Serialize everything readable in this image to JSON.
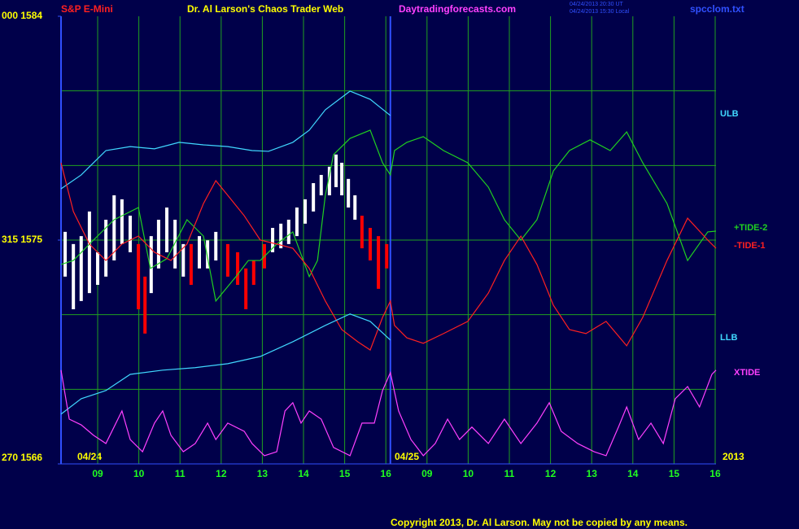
{
  "chart_data": {
    "type": "line",
    "instrument": "S&P E-Mini",
    "title": "Dr. Al Larson's Chaos Trader Web",
    "website": "Daytradingforecasts.com",
    "timestamps": [
      "04/24/2013 20:30 UT",
      "04/24/2013 15:30 Local"
    ],
    "filename": "spcclom.txt",
    "dates": [
      "04/24",
      "04/25"
    ],
    "year": "2013",
    "copyright": "Copyright 2013, Dr. Al Larson. May not be copied by any means.",
    "xlim": [
      -0.89,
      15.02
    ],
    "xticks": [
      {
        "value": 0,
        "label": "09"
      },
      {
        "value": 1,
        "label": "10"
      },
      {
        "value": 2,
        "label": "11"
      },
      {
        "value": 3,
        "label": "12"
      },
      {
        "value": 4,
        "label": "13"
      },
      {
        "value": 5,
        "label": "14"
      },
      {
        "value": 6,
        "label": "15"
      },
      {
        "value": 7,
        "label": "16"
      },
      {
        "value": 8,
        "label": "09"
      },
      {
        "value": 9,
        "label": "10"
      },
      {
        "value": 10,
        "label": "11"
      },
      {
        "value": 11,
        "label": "12"
      },
      {
        "value": 12,
        "label": "13"
      },
      {
        "value": 13,
        "label": "14"
      },
      {
        "value": 14,
        "label": "15"
      },
      {
        "value": 15,
        "label": "16"
      }
    ],
    "day_divider": 7.11,
    "ylim": [
      1566,
      1584
    ],
    "yticks": [
      {
        "value": 1584,
        "label": "000 1584"
      },
      {
        "value": 1575,
        "label": "315 1575"
      },
      {
        "value": 1566,
        "label": "270 1566"
      }
    ],
    "ygrid": [
      1581,
      1578,
      1575,
      1572,
      1569
    ],
    "grid": true,
    "price_bars": {
      "x": [
        -0.79,
        -0.59,
        -0.4,
        -0.2,
        0,
        0.2,
        0.4,
        0.59,
        0.79,
        0.99,
        1.15,
        1.3,
        1.48,
        1.68,
        1.88,
        2.08,
        2.27,
        2.47,
        2.67,
        2.87,
        3.16,
        3.4,
        3.6,
        3.79,
        4.05,
        4.25,
        4.45,
        4.64,
        4.84,
        5.04,
        5.24,
        5.43,
        5.63,
        5.79,
        5.93,
        6.09,
        6.25,
        6.42,
        6.62,
        6.82,
        7.02
      ],
      "high": [
        1575.33,
        1574.84,
        1575.16,
        1576.15,
        1574.51,
        1575.82,
        1576.8,
        1576.64,
        1575.98,
        1574.84,
        1573.53,
        1575.16,
        1575.82,
        1576.31,
        1575.82,
        1574.84,
        1574.84,
        1575.16,
        1574.99,
        1575.33,
        1574.84,
        1574.51,
        1573.86,
        1574.18,
        1574.84,
        1575.49,
        1575.66,
        1575.82,
        1576.31,
        1576.64,
        1577.29,
        1577.62,
        1577.95,
        1578.44,
        1578.11,
        1577.46,
        1576.8,
        1575.98,
        1575.49,
        1575.16,
        1574.84
      ],
      "low": [
        1573.53,
        1572.22,
        1572.55,
        1572.87,
        1573.2,
        1573.53,
        1574.18,
        1574.84,
        1574.51,
        1572.22,
        1571.24,
        1572.87,
        1573.86,
        1574.51,
        1573.86,
        1573.53,
        1573.2,
        1573.86,
        1573.86,
        1574.18,
        1573.53,
        1573.2,
        1572.22,
        1573.2,
        1573.86,
        1574.51,
        1574.67,
        1574.84,
        1575.16,
        1575.66,
        1576.15,
        1576.8,
        1576.8,
        1577.13,
        1576.8,
        1576.31,
        1575.82,
        1574.67,
        1574.18,
        1573.04,
        1573.86
      ],
      "colors": [
        "#ffffff",
        "#ffffff",
        "#ffffff",
        "#ffffff",
        "#ffffff",
        "#ffffff",
        "#ffffff",
        "#ffffff",
        "#ffffff",
        "#ff0000",
        "#ff0000",
        "#ffffff",
        "#ffffff",
        "#ffffff",
        "#ffffff",
        "#ffffff",
        "#ff0000",
        "#ffffff",
        "#ffffff",
        "#ffffff",
        "#ff0000",
        "#ff0000",
        "#ff0000",
        "#ff0000",
        "#ff0000",
        "#ffffff",
        "#ffffff",
        "#ffffff",
        "#ffffff",
        "#ffffff",
        "#ffffff",
        "#ffffff",
        "#ffffff",
        "#ffffff",
        "#ffffff",
        "#ffffff",
        "#ffffff",
        "#ff0000",
        "#ff0000",
        "#ff0000",
        "#ff0000"
      ]
    },
    "series": [
      {
        "name": "ULB",
        "color": "#40d8ff",
        "x": [
          -0.89,
          -0.4,
          0.2,
          0.79,
          1.38,
          1.98,
          2.57,
          3.16,
          3.75,
          4.15,
          4.74,
          5.14,
          5.53,
          6.13,
          6.62,
          7.11
        ],
        "values": [
          1577.06,
          1577.62,
          1578.6,
          1578.76,
          1578.67,
          1578.93,
          1578.83,
          1578.76,
          1578.6,
          1578.57,
          1578.93,
          1579.42,
          1580.24,
          1580.99,
          1580.66,
          1580.01
        ]
      },
      {
        "name": "+TIDE-2",
        "color": "#20d020",
        "x": [
          -0.89,
          -0.59,
          -0.2,
          0.4,
          0.99,
          1.28,
          1.68,
          2.17,
          2.57,
          2.87,
          3.36,
          3.66,
          3.95,
          4.35,
          4.74,
          5.14,
          5.34,
          5.53,
          5.73,
          6.13,
          6.62,
          6.92,
          7.11,
          7.21,
          7.51,
          7.91,
          8.4,
          8.99,
          9.49,
          9.88,
          10.28,
          10.67,
          11.07,
          11.46,
          11.96,
          12.45,
          12.85,
          13.24,
          13.83,
          14.33,
          14.82,
          15.02
        ],
        "values": [
          1574.02,
          1574.18,
          1574.84,
          1575.82,
          1576.31,
          1573.86,
          1574.25,
          1575.82,
          1575.16,
          1572.55,
          1573.53,
          1574.18,
          1574.18,
          1574.84,
          1575.33,
          1573.53,
          1574.18,
          1576.8,
          1578.44,
          1579.09,
          1579.42,
          1578.11,
          1577.62,
          1578.6,
          1578.93,
          1579.16,
          1578.6,
          1578.11,
          1577.13,
          1575.82,
          1575.0,
          1575.82,
          1577.78,
          1578.6,
          1579.03,
          1578.6,
          1579.35,
          1578.11,
          1576.47,
          1574.18,
          1575.33,
          1575.36
        ]
      },
      {
        "name": "-TIDE-1",
        "color": "#ff2020",
        "x": [
          -0.89,
          -0.59,
          -0.2,
          0.2,
          0.59,
          0.99,
          1.38,
          1.78,
          2.17,
          2.57,
          2.87,
          3.16,
          3.56,
          3.95,
          4.35,
          4.74,
          5.14,
          5.53,
          5.93,
          6.32,
          6.62,
          6.92,
          7.11,
          7.21,
          7.51,
          7.91,
          8.4,
          8.99,
          9.49,
          9.88,
          10.28,
          10.67,
          11.07,
          11.46,
          11.86,
          12.35,
          12.85,
          13.24,
          13.83,
          14.33,
          14.82,
          15.02
        ],
        "values": [
          1578.11,
          1576.15,
          1574.84,
          1574.18,
          1574.84,
          1575.16,
          1574.51,
          1574.18,
          1574.84,
          1576.47,
          1577.39,
          1576.8,
          1575.98,
          1575.0,
          1574.84,
          1574.67,
          1573.86,
          1572.55,
          1571.4,
          1570.91,
          1570.58,
          1571.89,
          1572.55,
          1571.57,
          1571.07,
          1570.85,
          1571.24,
          1571.73,
          1572.87,
          1574.18,
          1575.16,
          1574.02,
          1572.38,
          1571.4,
          1571.24,
          1571.73,
          1570.75,
          1571.89,
          1574.18,
          1575.88,
          1575.0,
          1574.67
        ]
      },
      {
        "name": "LLB",
        "color": "#40d8ff",
        "x": [
          -0.89,
          -0.4,
          0.2,
          0.79,
          1.58,
          2.37,
          3.16,
          3.95,
          4.74,
          5.53,
          6.13,
          6.62,
          7.11
        ],
        "values": [
          1568.0,
          1568.62,
          1568.95,
          1569.6,
          1569.77,
          1569.87,
          1570.03,
          1570.32,
          1570.91,
          1571.57,
          1572.03,
          1571.73,
          1570.98
        ]
      },
      {
        "name": "XTIDE",
        "color": "#ff40ff",
        "x": [
          -0.89,
          -0.69,
          -0.4,
          -0.1,
          0.2,
          0.59,
          0.79,
          1.09,
          1.38,
          1.58,
          1.78,
          2.08,
          2.37,
          2.67,
          2.87,
          3.16,
          3.56,
          3.75,
          4.05,
          4.35,
          4.55,
          4.74,
          4.94,
          5.14,
          5.43,
          5.73,
          6.13,
          6.42,
          6.72,
          6.92,
          7.11,
          7.31,
          7.61,
          7.91,
          8.2,
          8.5,
          8.79,
          9.09,
          9.49,
          9.88,
          10.28,
          10.67,
          10.97,
          11.26,
          11.66,
          12.06,
          12.35,
          12.65,
          12.85,
          13.14,
          13.44,
          13.74,
          14.03,
          14.33,
          14.62,
          14.92,
          15.02
        ],
        "values": [
          1569.77,
          1567.8,
          1567.57,
          1567.15,
          1566.82,
          1568.13,
          1566.98,
          1566.49,
          1567.64,
          1568.13,
          1567.15,
          1566.49,
          1566.82,
          1567.64,
          1566.98,
          1567.64,
          1567.31,
          1566.82,
          1566.33,
          1566.49,
          1568.13,
          1568.46,
          1567.64,
          1568.13,
          1567.8,
          1566.66,
          1566.33,
          1567.64,
          1567.64,
          1568.95,
          1569.67,
          1568.13,
          1566.98,
          1566.33,
          1566.82,
          1567.8,
          1566.98,
          1567.48,
          1566.82,
          1567.8,
          1566.82,
          1567.64,
          1568.46,
          1567.31,
          1566.82,
          1566.49,
          1566.33,
          1567.48,
          1568.29,
          1566.98,
          1567.64,
          1566.82,
          1568.62,
          1569.11,
          1568.29,
          1569.6,
          1569.77
        ]
      }
    ]
  }
}
